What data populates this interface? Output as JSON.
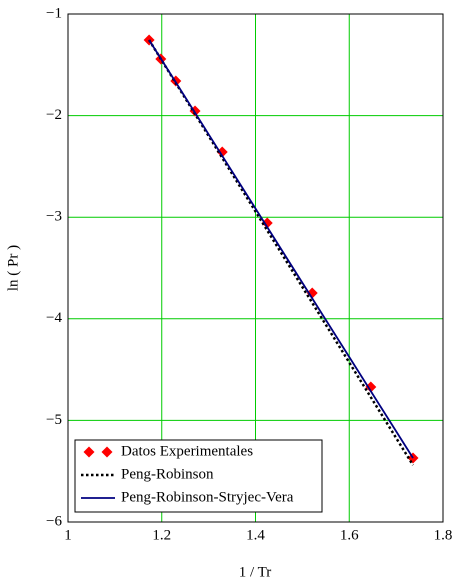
{
  "chart_data": {
    "type": "line",
    "xlabel": "1 / Tr",
    "ylabel": "ln ( Pr )",
    "xlim": [
      1,
      1.8
    ],
    "ylim": [
      -6,
      -1
    ],
    "xticks": [
      1,
      1.2,
      1.4,
      1.6,
      1.8
    ],
    "yticks": [
      {
        "value": -6,
        "label": "−6"
      },
      {
        "value": -5,
        "label": "−5"
      },
      {
        "value": -4,
        "label": "−4"
      },
      {
        "value": -3,
        "label": "−3"
      },
      {
        "value": -2,
        "label": "−2"
      },
      {
        "value": -1,
        "label": "−1"
      }
    ],
    "grid": true,
    "grid_color": "#00cc00",
    "legend": "lower left",
    "series": [
      {
        "name": "Datos Experimentales",
        "color": "#ff0000",
        "style": "markers",
        "x": [
          1.173,
          1.198,
          1.23,
          1.271,
          1.329,
          1.425,
          1.521,
          1.646,
          1.736
        ],
        "values": [
          -1.256,
          -1.443,
          -1.659,
          -1.955,
          -2.358,
          -3.057,
          -3.746,
          -4.671,
          -5.37
        ]
      },
      {
        "name": "Peng-Robinson",
        "color": "#000000",
        "style": "dotted",
        "x": [
          1.173,
          1.3,
          1.45,
          1.6,
          1.736
        ],
        "values": [
          -1.256,
          -2.2,
          -3.315,
          -4.43,
          -5.44
        ]
      },
      {
        "name": "Peng-Robinson-Stryjec-Vera",
        "color": "#000080",
        "style": "solid",
        "x": [
          1.173,
          1.3,
          1.45,
          1.6,
          1.736
        ],
        "values": [
          -1.256,
          -2.184,
          -3.28,
          -4.376,
          -5.37
        ]
      }
    ]
  }
}
